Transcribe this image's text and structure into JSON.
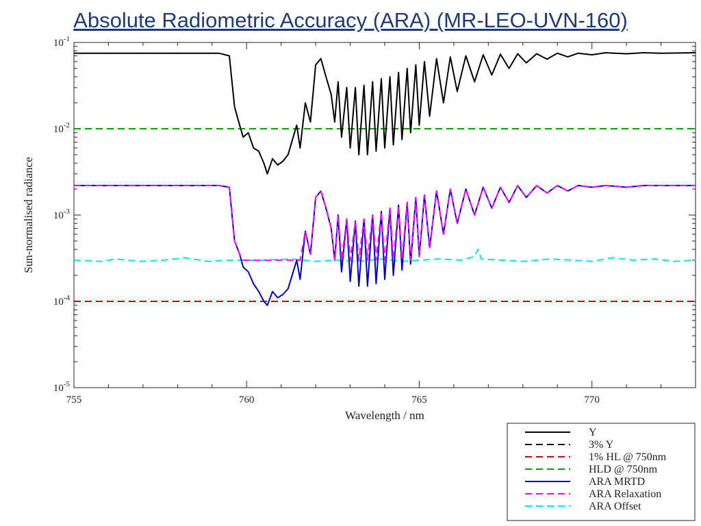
{
  "slide": {
    "title": "Absolute Radiometric Accuracy (ARA) (MR-LEO-UVN-160)"
  },
  "chart_data": {
    "type": "line",
    "title": "",
    "xlabel": "Wavelength / nm",
    "ylabel": "Sun-normalised radiance",
    "xlim": [
      755,
      773
    ],
    "ylim": [
      1e-05,
      0.1
    ],
    "y_scale": "log",
    "grid": false,
    "x_ticks": [
      "755",
      "760",
      "765",
      "770"
    ],
    "x_tick_values": [
      755,
      760,
      765,
      770
    ],
    "y_ticks": [
      {
        "value": 0.1,
        "base": "10",
        "exp": "-1"
      },
      {
        "value": 0.01,
        "base": "10",
        "exp": "-2"
      },
      {
        "value": 0.001,
        "base": "10",
        "exp": "-3"
      },
      {
        "value": 0.0001,
        "base": "10",
        "exp": "-4"
      },
      {
        "value": 1e-05,
        "base": "10",
        "exp": "-5"
      }
    ],
    "legend_position": "below-right",
    "series": [
      {
        "name": "Y",
        "color": "#000000",
        "style": "solid",
        "points": [
          [
            755,
            0.075
          ],
          [
            759.2,
            0.075
          ],
          [
            759.5,
            0.07
          ],
          [
            759.65,
            0.018
          ],
          [
            759.8,
            0.011
          ],
          [
            759.9,
            0.008
          ],
          [
            760.05,
            0.009
          ],
          [
            760.2,
            0.006
          ],
          [
            760.35,
            0.0055
          ],
          [
            760.5,
            0.004
          ],
          [
            760.6,
            0.003
          ],
          [
            760.75,
            0.0045
          ],
          [
            760.9,
            0.0038
          ],
          [
            761.05,
            0.0042
          ],
          [
            761.2,
            0.005
          ],
          [
            761.35,
            0.008
          ],
          [
            761.45,
            0.011
          ],
          [
            761.55,
            0.006
          ],
          [
            761.7,
            0.02
          ],
          [
            761.85,
            0.012
          ],
          [
            762.0,
            0.055
          ],
          [
            762.15,
            0.065
          ],
          [
            762.3,
            0.04
          ],
          [
            762.45,
            0.025
          ],
          [
            762.55,
            0.012
          ],
          [
            762.65,
            0.035
          ],
          [
            762.75,
            0.008
          ],
          [
            762.9,
            0.03
          ],
          [
            763.0,
            0.006
          ],
          [
            763.15,
            0.03
          ],
          [
            763.25,
            0.005
          ],
          [
            763.4,
            0.032
          ],
          [
            763.5,
            0.005
          ],
          [
            763.65,
            0.035
          ],
          [
            763.75,
            0.0055
          ],
          [
            763.9,
            0.038
          ],
          [
            764.0,
            0.006
          ],
          [
            764.15,
            0.04
          ],
          [
            764.25,
            0.0065
          ],
          [
            764.4,
            0.045
          ],
          [
            764.5,
            0.0075
          ],
          [
            764.65,
            0.05
          ],
          [
            764.75,
            0.009
          ],
          [
            764.9,
            0.055
          ],
          [
            765.0,
            0.011
          ],
          [
            765.15,
            0.06
          ],
          [
            765.3,
            0.014
          ],
          [
            765.5,
            0.065
          ],
          [
            765.7,
            0.02
          ],
          [
            765.9,
            0.068
          ],
          [
            766.1,
            0.027
          ],
          [
            766.35,
            0.07
          ],
          [
            766.6,
            0.035
          ],
          [
            766.85,
            0.072
          ],
          [
            767.1,
            0.042
          ],
          [
            767.35,
            0.073
          ],
          [
            767.6,
            0.05
          ],
          [
            767.85,
            0.074
          ],
          [
            768.1,
            0.058
          ],
          [
            768.4,
            0.074
          ],
          [
            768.7,
            0.064
          ],
          [
            769.0,
            0.075
          ],
          [
            769.3,
            0.068
          ],
          [
            769.6,
            0.075
          ],
          [
            770.0,
            0.072
          ],
          [
            770.4,
            0.076
          ],
          [
            771.0,
            0.074
          ],
          [
            771.5,
            0.076
          ],
          [
            772.0,
            0.075
          ],
          [
            773,
            0.076
          ]
        ]
      },
      {
        "name": "3% Y",
        "color": "#000000",
        "style": "dashed",
        "points": []
      },
      {
        "name": "1% HL @ 750nm",
        "color": "#cc0000",
        "style": "dashed",
        "points": [
          [
            755,
            0.0001
          ],
          [
            773,
            0.0001
          ]
        ]
      },
      {
        "name": "HLD @ 750nm",
        "color": "#00a000",
        "style": "dashed",
        "points": [
          [
            755,
            0.01
          ],
          [
            773,
            0.01
          ]
        ]
      },
      {
        "name": "ARA MRTD",
        "color": "#0000cc",
        "style": "solid",
        "points": [
          [
            755,
            0.0022
          ],
          [
            759.2,
            0.0022
          ],
          [
            759.5,
            0.0021
          ],
          [
            759.65,
            0.0005
          ],
          [
            759.8,
            0.00035
          ],
          [
            759.9,
            0.00025
          ],
          [
            760.05,
            0.00022
          ],
          [
            760.2,
            0.00016
          ],
          [
            760.35,
            0.00013
          ],
          [
            760.5,
            0.0001
          ],
          [
            760.6,
            9e-05
          ],
          [
            760.75,
            0.00013
          ],
          [
            760.9,
            0.00011
          ],
          [
            761.05,
            0.00012
          ],
          [
            761.2,
            0.00014
          ],
          [
            761.35,
            0.00022
          ],
          [
            761.45,
            0.0003
          ],
          [
            761.55,
            0.00018
          ],
          [
            761.7,
            0.00065
          ],
          [
            761.85,
            0.00035
          ],
          [
            762.0,
            0.0016
          ],
          [
            762.15,
            0.0019
          ],
          [
            762.3,
            0.0012
          ],
          [
            762.45,
            0.0007
          ],
          [
            762.55,
            0.0003
          ],
          [
            762.65,
            0.001
          ],
          [
            762.75,
            0.00022
          ],
          [
            762.9,
            0.0009
          ],
          [
            763.0,
            0.00017
          ],
          [
            763.15,
            0.00085
          ],
          [
            763.25,
            0.00015
          ],
          [
            763.4,
            0.0009
          ],
          [
            763.5,
            0.00015
          ],
          [
            763.65,
            0.001
          ],
          [
            763.75,
            0.00016
          ],
          [
            763.9,
            0.0011
          ],
          [
            764.0,
            0.00018
          ],
          [
            764.15,
            0.0012
          ],
          [
            764.25,
            0.0002
          ],
          [
            764.4,
            0.0013
          ],
          [
            764.5,
            0.00023
          ],
          [
            764.65,
            0.0014
          ],
          [
            764.75,
            0.00027
          ],
          [
            764.9,
            0.0016
          ],
          [
            765.0,
            0.00033
          ],
          [
            765.15,
            0.0017
          ],
          [
            765.3,
            0.00042
          ],
          [
            765.5,
            0.0019
          ],
          [
            765.7,
            0.0006
          ],
          [
            765.9,
            0.002
          ],
          [
            766.1,
            0.0008
          ],
          [
            766.35,
            0.002
          ],
          [
            766.6,
            0.001
          ],
          [
            766.85,
            0.0021
          ],
          [
            767.1,
            0.0012
          ],
          [
            767.35,
            0.0021
          ],
          [
            767.6,
            0.0014
          ],
          [
            767.85,
            0.0022
          ],
          [
            768.1,
            0.0016
          ],
          [
            768.4,
            0.0022
          ],
          [
            768.7,
            0.0018
          ],
          [
            769.0,
            0.0022
          ],
          [
            769.3,
            0.0019
          ],
          [
            769.6,
            0.0022
          ],
          [
            770.0,
            0.0021
          ],
          [
            770.4,
            0.0022
          ],
          [
            771.0,
            0.0021
          ],
          [
            771.5,
            0.0022
          ],
          [
            772.0,
            0.0022
          ],
          [
            773,
            0.0022
          ]
        ]
      },
      {
        "name": "ARA Relaxation",
        "color": "#ff00ff",
        "style": "dashed",
        "points": [
          [
            755,
            0.0022
          ],
          [
            759.2,
            0.0022
          ],
          [
            759.5,
            0.0021
          ],
          [
            759.65,
            0.0005
          ],
          [
            759.8,
            0.00035
          ],
          [
            759.9,
            0.0003
          ],
          [
            761.0,
            0.0003
          ],
          [
            761.55,
            0.0003
          ],
          [
            761.7,
            0.00065
          ],
          [
            761.85,
            0.00035
          ],
          [
            762.0,
            0.0016
          ],
          [
            762.15,
            0.0019
          ],
          [
            762.3,
            0.0012
          ],
          [
            762.45,
            0.0007
          ],
          [
            762.55,
            0.0003
          ],
          [
            762.65,
            0.001
          ],
          [
            762.75,
            0.0003
          ],
          [
            762.9,
            0.0009
          ],
          [
            763.0,
            0.0003
          ],
          [
            763.15,
            0.00085
          ],
          [
            763.25,
            0.0003
          ],
          [
            763.4,
            0.0009
          ],
          [
            763.5,
            0.0003
          ],
          [
            763.65,
            0.001
          ],
          [
            763.75,
            0.0003
          ],
          [
            763.9,
            0.0011
          ],
          [
            764.0,
            0.0003
          ],
          [
            764.15,
            0.0012
          ],
          [
            764.25,
            0.0003
          ],
          [
            764.4,
            0.0013
          ],
          [
            764.5,
            0.0003
          ],
          [
            764.65,
            0.0014
          ],
          [
            764.75,
            0.0003
          ],
          [
            764.9,
            0.0016
          ],
          [
            765.0,
            0.00033
          ],
          [
            765.15,
            0.0017
          ],
          [
            765.3,
            0.00042
          ],
          [
            765.5,
            0.0019
          ],
          [
            765.7,
            0.0006
          ],
          [
            765.9,
            0.002
          ],
          [
            766.1,
            0.0008
          ],
          [
            766.35,
            0.002
          ],
          [
            766.6,
            0.001
          ],
          [
            766.85,
            0.0021
          ],
          [
            767.1,
            0.0012
          ],
          [
            767.35,
            0.0021
          ],
          [
            767.6,
            0.0014
          ],
          [
            767.85,
            0.0022
          ],
          [
            768.1,
            0.0016
          ],
          [
            768.4,
            0.0022
          ],
          [
            768.7,
            0.0018
          ],
          [
            769.0,
            0.0022
          ],
          [
            769.3,
            0.0019
          ],
          [
            769.6,
            0.0022
          ],
          [
            770.0,
            0.0021
          ],
          [
            770.4,
            0.0022
          ],
          [
            771.0,
            0.0021
          ],
          [
            771.5,
            0.0022
          ],
          [
            772.0,
            0.0022
          ],
          [
            773,
            0.0022
          ]
        ]
      },
      {
        "name": "ARA Offset",
        "color": "#00e5ee",
        "style": "dashed",
        "points": [
          [
            755,
            0.0003
          ],
          [
            755.8,
            0.00029
          ],
          [
            756.2,
            0.00031
          ],
          [
            756.9,
            0.00029
          ],
          [
            757.6,
            0.0003
          ],
          [
            758.2,
            0.00032
          ],
          [
            758.9,
            0.00029
          ],
          [
            759.6,
            0.0003
          ],
          [
            760.4,
            0.0003
          ],
          [
            761.3,
            0.00031
          ],
          [
            762.0,
            0.00029
          ],
          [
            762.6,
            0.0003
          ],
          [
            763.2,
            0.00029
          ],
          [
            763.9,
            0.00031
          ],
          [
            764.5,
            0.00029
          ],
          [
            765.0,
            0.0003
          ],
          [
            765.6,
            0.00031
          ],
          [
            766.2,
            0.0003
          ],
          [
            766.6,
            0.00033
          ],
          [
            766.7,
            0.0004
          ],
          [
            766.8,
            0.00031
          ],
          [
            767.4,
            0.0003
          ],
          [
            768.0,
            0.00029
          ],
          [
            768.8,
            0.00031
          ],
          [
            769.4,
            0.0003
          ],
          [
            770.0,
            0.00029
          ],
          [
            770.6,
            0.00032
          ],
          [
            771.2,
            0.0003
          ],
          [
            771.8,
            0.00031
          ],
          [
            772.4,
            0.00029
          ],
          [
            773,
            0.0003
          ]
        ]
      }
    ]
  }
}
